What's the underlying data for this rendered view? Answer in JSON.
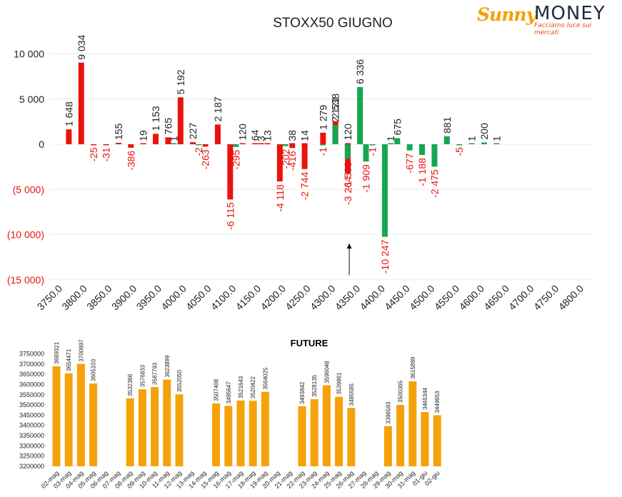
{
  "logo": {
    "brand_left": "Sunny",
    "brand_right": "MONEY",
    "tagline": "Facciamo luce sui mercati"
  },
  "colors": {
    "positive": "#e8140c",
    "negative": "#16a651",
    "future_bar": "#f5a20a",
    "text": "#222222",
    "red_text": "#e8140c"
  },
  "chart_data": [
    {
      "type": "bar",
      "title": "STOXX50 GIUGNO",
      "categories": [
        "3750.0",
        "3800.0",
        "3850.0",
        "3900.0",
        "3950.0",
        "4000.0",
        "4050.0",
        "4100.0",
        "4150.0",
        "4200.0",
        "4250.0",
        "4300.0",
        "4350.0",
        "4400.0",
        "4450.0",
        "4500.0",
        "4550.0",
        "4600.0",
        "4650.0",
        "4700.0",
        "4750.0",
        "4800.0"
      ],
      "y_ticks": [
        "10 000",
        "5 000",
        "0",
        "(5 000)",
        "(10 000)",
        "(15 000)"
      ],
      "ylim": [
        -15000,
        12000
      ],
      "series": [
        {
          "color": "red",
          "points": [
            {
              "x": 3775,
              "y": 1648,
              "label": "1 648"
            },
            {
              "x": 3800,
              "y": 9034,
              "label": "9 034"
            },
            {
              "x": 3825,
              "y": -25,
              "label": "-25"
            },
            {
              "x": 3850,
              "y": -31,
              "label": "-31"
            },
            {
              "x": 3875,
              "y": 155,
              "label": "155"
            },
            {
              "x": 3900,
              "y": -386,
              "label": "-386"
            },
            {
              "x": 3925,
              "y": 19,
              "label": "19"
            },
            {
              "x": 3950,
              "y": 1153,
              "label": "1 153"
            },
            {
              "x": 3975,
              "y": 765,
              "label": "765"
            },
            {
              "x": 4000,
              "y": 5192,
              "label": "5 192"
            },
            {
              "x": 4025,
              "y": 227,
              "label": "227"
            },
            {
              "x": 4050,
              "y": -263,
              "label": "-263"
            },
            {
              "x": 4075,
              "y": 2187,
              "label": "2 187"
            },
            {
              "x": 4100,
              "y": -6115,
              "label": "-6 115"
            },
            {
              "x": 4125,
              "y": 120,
              "label": "120"
            },
            {
              "x": 4150,
              "y": 64,
              "label": "64"
            },
            {
              "x": 4162,
              "y": 3,
              "label": "3"
            },
            {
              "x": 4175,
              "y": 13,
              "label": "13"
            },
            {
              "x": 4200,
              "y": -4118,
              "label": "-4 118"
            },
            {
              "x": 4225,
              "y": 38,
              "label": "38"
            },
            {
              "x": 4225,
              "y": -416,
              "label": "-416"
            },
            {
              "x": 4250,
              "y": 14,
              "label": "14"
            },
            {
              "x": 4250,
              "y": -2744,
              "label": "-2 744"
            },
            {
              "x": 4287,
              "y": 1279,
              "label": "1 279"
            },
            {
              "x": 4312,
              "y": 2538,
              "label": "2 538"
            },
            {
              "x": 4337,
              "y": -3264,
              "label": "-3 264"
            },
            {
              "x": 4337,
              "y": 120,
              "label": "120"
            }
          ]
        },
        {
          "color": "green",
          "points": [
            {
              "x": 3975,
              "y": 1,
              "label": "1"
            },
            {
              "x": 4025,
              "y": -2,
              "label": "-2"
            },
            {
              "x": 4100,
              "y": -295,
              "label": "-295"
            },
            {
              "x": 4200,
              "y": -202,
              "label": "-202"
            },
            {
              "x": 4275,
              "y": -1,
              "label": "-1"
            },
            {
              "x": 4300,
              "y": 2122,
              "label": "2 122"
            },
            {
              "x": 4325,
              "y": -1593,
              "label": "-1 593"
            },
            {
              "x": 4350,
              "y": 6336,
              "label": "6 336"
            },
            {
              "x": 4362,
              "y": -1909,
              "label": "-1 909"
            },
            {
              "x": 4375,
              "y": -1,
              "label": "-1"
            },
            {
              "x": 4400,
              "y": -10247,
              "label": "-10 247"
            },
            {
              "x": 4412,
              "y": 1,
              "label": "1"
            },
            {
              "x": 4425,
              "y": 675,
              "label": "675"
            },
            {
              "x": 4450,
              "y": -677,
              "label": "-677"
            },
            {
              "x": 4475,
              "y": -1188,
              "label": "-1 188"
            },
            {
              "x": 4500,
              "y": -2475,
              "label": "-2 475"
            },
            {
              "x": 4525,
              "y": 881,
              "label": "881"
            },
            {
              "x": 4550,
              "y": -5,
              "label": "-5"
            },
            {
              "x": 4575,
              "y": 1,
              "label": "1"
            },
            {
              "x": 4600,
              "y": 200,
              "label": "200"
            },
            {
              "x": 4625,
              "y": 1,
              "label": "1"
            }
          ]
        }
      ],
      "annotation": {
        "type": "arrow",
        "x": 4337,
        "y_from": -14500,
        "y_to": -11000
      }
    },
    {
      "type": "bar",
      "title": "FUTURE",
      "ylim": [
        3200000,
        3750000
      ],
      "y_ticks": [
        "3750000",
        "3700000",
        "3650000",
        "3600000",
        "3550000",
        "3500000",
        "3450000",
        "3400000",
        "3350000",
        "3300000",
        "3250000",
        "3200000"
      ],
      "categories": [
        "02-mag",
        "03-mag",
        "04-mag",
        "05-mag",
        "06-mag",
        "07-mag",
        "08-mag",
        "09-mag",
        "10-mag",
        "11-mag",
        "12-mag",
        "13-mag",
        "14-mag",
        "15-mag",
        "16-mag",
        "17-mag",
        "18-mag",
        "19-mag",
        "20-mag",
        "21-mag",
        "22-mag",
        "23-mag",
        "24-mag",
        "25-mag",
        "26-mag",
        "27-mag",
        "28-mag",
        "29-mag",
        "30-mag",
        "31-mag",
        "01-giu",
        "02-giu"
      ],
      "values": [
        3689321,
        3654471,
        3700897,
        3605103,
        null,
        null,
        3532366,
        3576833,
        3587793,
        3623899,
        3552050,
        null,
        null,
        3507408,
        3495647,
        3521643,
        3520422,
        3564025,
        null,
        null,
        3493842,
        3528135,
        3596048,
        3539861,
        3485585,
        null,
        null,
        3396593,
        3500365,
        3615899,
        3465344,
        3449653
      ],
      "value_labels": [
        "3689321",
        "3654471",
        "3700897",
        "3605103",
        "",
        "",
        "3532366",
        "3576833",
        "3587793",
        "3623899",
        "3552050",
        "",
        "",
        "3507408",
        "3495647",
        "3521643",
        "3520422",
        "3564025",
        "",
        "",
        "3493842",
        "3528135",
        "3596048",
        "3539861",
        "3485585",
        "",
        "",
        "3396593",
        "3500365",
        "3615899",
        "3465344",
        "3449653"
      ]
    }
  ]
}
